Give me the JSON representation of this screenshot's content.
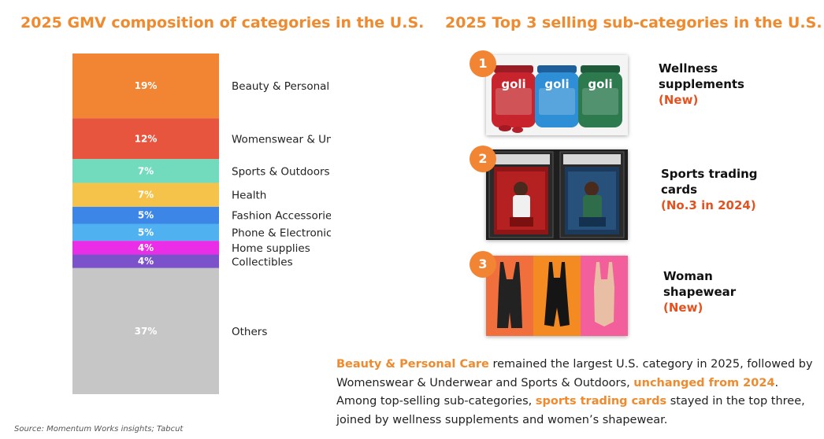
{
  "left_title": "2025 GMV composition of categories in the U.S.",
  "right_title": "2025 Top 3 selling sub-categories in the U.S.",
  "chart_data": {
    "type": "bar",
    "stacked": true,
    "title": "2025 GMV composition of categories in the U.S.",
    "unit": "%",
    "categories": [
      "Beauty & Personal Care",
      "Womenswear & Underwear",
      "Sports & Outdoors",
      "Health",
      "Fashion Accessories",
      "Phone & Electronics",
      "Home supplies",
      "Collectibles",
      "Others"
    ],
    "values": [
      19,
      12,
      7,
      7,
      5,
      5,
      4,
      4,
      37
    ],
    "labels": [
      "19%",
      "12%",
      "7%",
      "7%",
      "5%",
      "5%",
      "4%",
      "4%",
      "37%"
    ],
    "colors": [
      "#f28533",
      "#e8553e",
      "#72dbbd",
      "#f5c34a",
      "#3b86e6",
      "#4fb1f0",
      "#ea2de6",
      "#7b52c9",
      "#c6c6c6"
    ],
    "legend": "right"
  },
  "subcategories": [
    {
      "rank": "1",
      "name_lines": [
        "Wellness",
        "supplements"
      ],
      "tag": "(New)",
      "image": "goli-gummies-image"
    },
    {
      "rank": "2",
      "name_lines": [
        "Sports trading",
        "cards"
      ],
      "tag": "(No.3 in 2024)",
      "image": "trading-cards-image"
    },
    {
      "rank": "3",
      "name_lines": [
        "Woman",
        "shapewear"
      ],
      "tag": "(New)",
      "image": "shapewear-image"
    }
  ],
  "product_text": {
    "brand": "goli"
  },
  "summary": {
    "p1": "Beauty & Personal Care",
    "p2": " remained the largest U.S. category in 2025, followed by Womenswear & Underwear and Sports & Outdoors, ",
    "p3": "unchanged from 2024",
    "p4": ". Among top-selling sub-categories, ",
    "p5": "sports trading cards",
    "p6": " stayed in the top three, joined by wellness supplements and women’s shapewear."
  },
  "source": "Source: Momentum Works insights; Tabcut",
  "colors": {
    "accent": "#ef8a2e",
    "tag_red": "#e3521f",
    "badge": "#f28533"
  }
}
